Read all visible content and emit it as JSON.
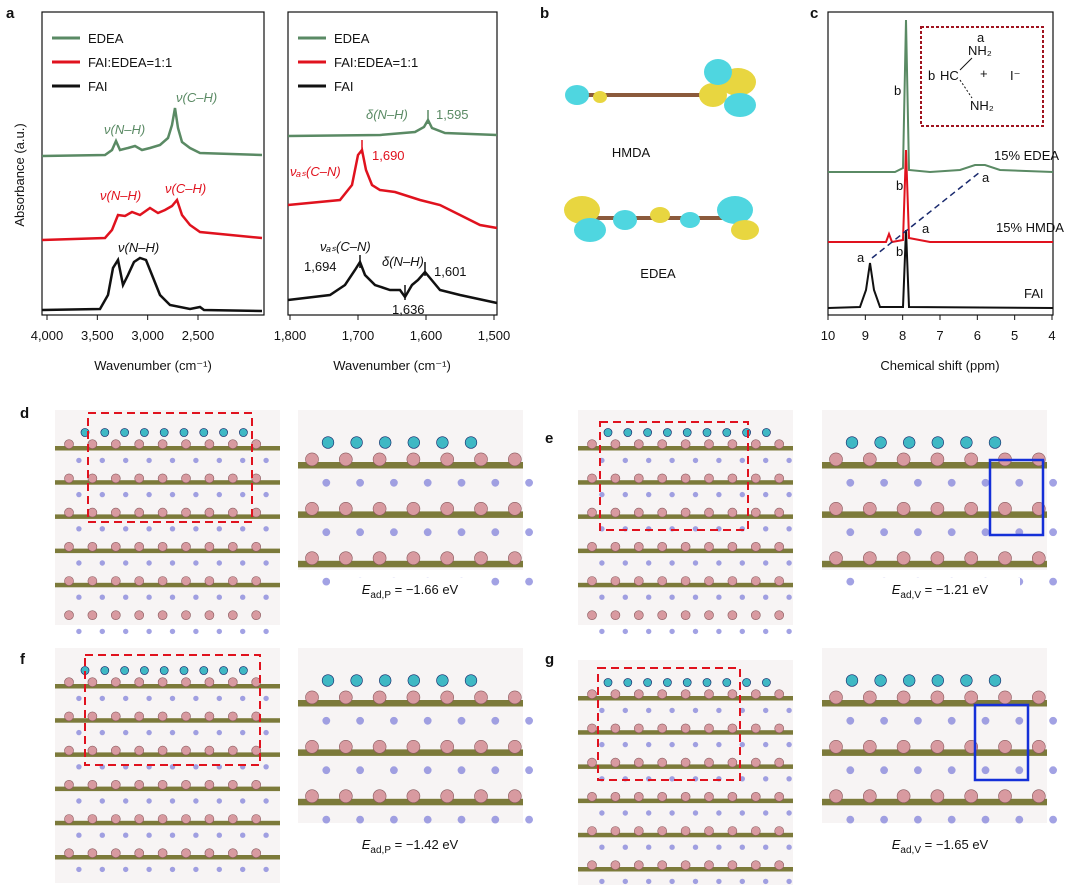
{
  "panel_a": {
    "label": "a",
    "y_label": "Absorbance (a.u.)",
    "left": {
      "legend": [
        "EDEA",
        "FAI:EDEA=1:1",
        "FAI"
      ],
      "x_label": "Wavenumber (cm⁻¹)",
      "x_ticks": [
        "4,000",
        "3,500",
        "3,000",
        "2,500"
      ],
      "annotations": {
        "edea": [
          "ν(N–H)",
          "ν(C–H)"
        ],
        "mix": [
          "ν(N–H)",
          "ν(C–H)"
        ],
        "fai": [
          "ν(N–H)"
        ]
      }
    },
    "right": {
      "legend": [
        "EDEA",
        "FAI:EDEA=1:1",
        "FAI"
      ],
      "x_label": "Wavenumber (cm⁻¹)",
      "x_ticks": [
        "1,800",
        "1,700",
        "1,600",
        "1,500"
      ],
      "annotations": {
        "edea": [
          "δ(N–H)",
          "1,595"
        ],
        "mix": [
          "νₐₛ(C–N)",
          "1,690"
        ],
        "fai": [
          "νₐₛ(C–N)",
          "1,694",
          "δ(N–H)",
          "1,636",
          "1,601"
        ]
      }
    }
  },
  "panel_b": {
    "label": "b",
    "molecules": [
      "HMDA",
      "EDEA"
    ]
  },
  "panel_c": {
    "label": "c",
    "x_label": "Chemical shift (ppm)",
    "x_ticks": [
      "10",
      "9",
      "8",
      "7",
      "6",
      "5",
      "4"
    ],
    "traces": [
      "15% EDEA",
      "15% HMDA",
      "FAI"
    ],
    "peak_labels": [
      "b",
      "a",
      "b",
      "a",
      "a",
      "b"
    ],
    "structure": {
      "a": "a",
      "top": "NH₂",
      "b": "b",
      "center": "HC",
      "charge": "+",
      "anion": "I⁻",
      "bottom": "NH₂"
    }
  },
  "panels_dg": [
    {
      "label": "d",
      "energy": {
        "symbol": "E",
        "subscript": "ad,P",
        "value": " = −1.66 eV"
      }
    },
    {
      "label": "e",
      "energy": {
        "symbol": "E",
        "subscript": "ad,V",
        "value": " = −1.21 eV"
      }
    },
    {
      "label": "f",
      "energy": {
        "symbol": "E",
        "subscript": "ad,P",
        "value": " = −1.42 eV"
      }
    },
    {
      "label": "g",
      "energy": {
        "symbol": "E",
        "subscript": "ad,V",
        "value": " = −1.65 eV"
      }
    }
  ]
}
